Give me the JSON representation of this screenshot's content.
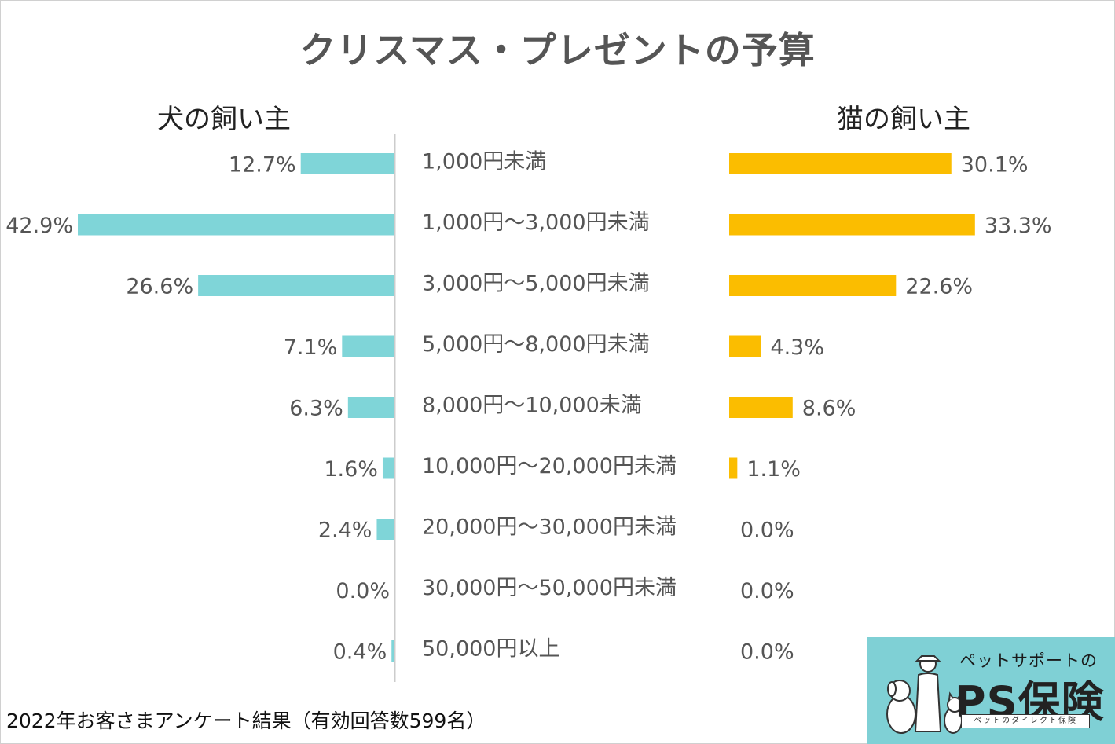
{
  "title": "クリスマス・プレゼントの予算",
  "footnote": "2022年お客さまアンケート結果（有効回答数599名）",
  "colors": {
    "dog_bar": "#7fd5d8",
    "cat_bar": "#fbbd00",
    "text": "#555555",
    "axis": "#cccccc"
  },
  "logo": {
    "subtitle": "ペットサポートの",
    "name": "PS保険",
    "tagline": "ペットのダイレクト保険",
    "icon": "owner-dog-cat-illustration-icon"
  },
  "chart_data": {
    "type": "bar",
    "orientation": "horizontal-butterfly",
    "title": "クリスマス・プレゼントの予算",
    "categories": [
      "1,000円未満",
      "1,000円～3,000円未満",
      "3,000円～5,000円未満",
      "5,000円～8,000円未満",
      "8,000円～10,000未満",
      "10,000円～20,000円未満",
      "20,000円～30,000円未満",
      "30,000円～50,000円未満",
      "50,000円以上"
    ],
    "series": [
      {
        "name": "犬の飼い主",
        "values": [
          12.7,
          42.9,
          26.6,
          7.1,
          6.3,
          1.6,
          2.4,
          0.0,
          0.4
        ],
        "labels": [
          "12.7%",
          "42.9%",
          "26.6%",
          "7.1%",
          "6.3%",
          "1.6%",
          "2.4%",
          "0.0%",
          "0.4%"
        ]
      },
      {
        "name": "猫の飼い主",
        "values": [
          30.1,
          33.3,
          22.6,
          4.3,
          8.6,
          1.1,
          0.0,
          0.0,
          0.0
        ],
        "labels": [
          "30.1%",
          "33.3%",
          "22.6%",
          "4.3%",
          "8.6%",
          "1.1%",
          "0.0%",
          "0.0%",
          "0.0%"
        ]
      }
    ],
    "xlim": [
      0,
      45
    ],
    "unit": "%"
  }
}
